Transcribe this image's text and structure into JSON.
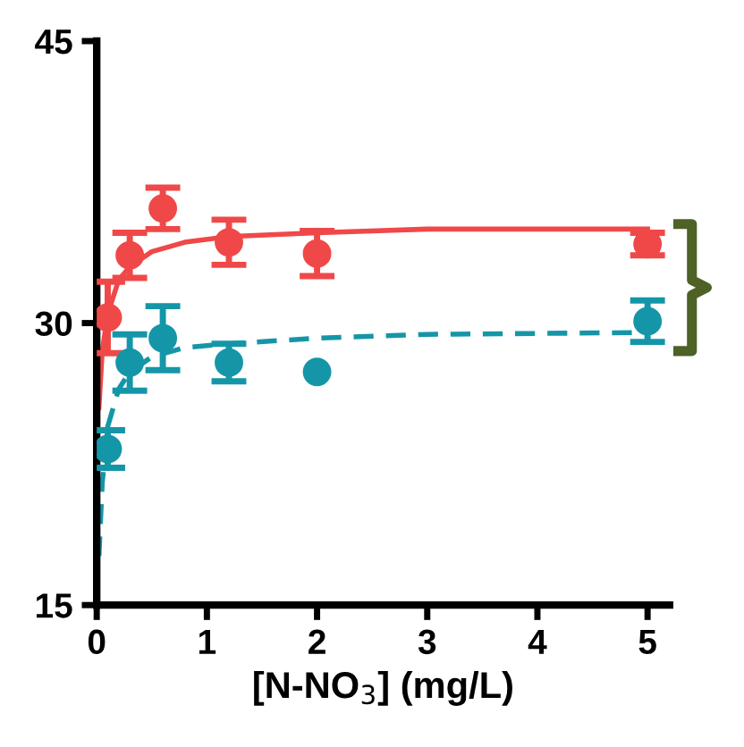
{
  "chart_data": {
    "type": "scatter",
    "xlabel": "[N-NO$_{3}$] (mg/L)",
    "xlim": [
      0,
      5.2
    ],
    "ylim": [
      15,
      45
    ],
    "xticks": [
      0,
      1,
      2,
      3,
      4,
      5
    ],
    "yticks": [
      15,
      30,
      45
    ],
    "grid": false,
    "legend": false,
    "series": [
      {
        "color": "#f04848",
        "marker": "circle",
        "x": [
          0.1,
          0.3,
          0.6,
          1.2,
          2,
          5
        ],
        "values": [
          30.3,
          33.6,
          36.1,
          34.3,
          33.7,
          34.2
        ],
        "errors": [
          1.9,
          1.2,
          1.1,
          1.2,
          1.2,
          0.6
        ]
      },
      {
        "color": "#1596a8",
        "marker": "circle",
        "x": [
          0.1,
          0.3,
          0.6,
          1.2,
          2,
          5
        ],
        "values": [
          23.3,
          27.9,
          29.2,
          27.9,
          27.4,
          30.1
        ],
        "errors": [
          1.0,
          1.5,
          1.7,
          1.0,
          null,
          1.1
        ]
      },
      {
        "type": "line",
        "color": "#f04848",
        "line_style": "solid",
        "marker": "none",
        "x": [
          0.02,
          0.05,
          0.1,
          0.2,
          0.3,
          0.5,
          0.8,
          1.2,
          2,
          3,
          5
        ],
        "values": [
          25.5,
          28.5,
          30.5,
          32.3,
          33.0,
          33.8,
          34.3,
          34.6,
          34.8,
          35.0,
          35.0
        ]
      },
      {
        "type": "line",
        "color": "#1596a8",
        "line_style": "dashed",
        "marker": "none",
        "x": [
          0.02,
          0.05,
          0.1,
          0.2,
          0.3,
          0.5,
          0.8,
          1.2,
          2,
          3,
          5
        ],
        "values": [
          17.6,
          21.5,
          24.5,
          26.5,
          27.4,
          28.2,
          28.7,
          28.9,
          29.2,
          29.4,
          29.5
        ]
      }
    ]
  }
}
